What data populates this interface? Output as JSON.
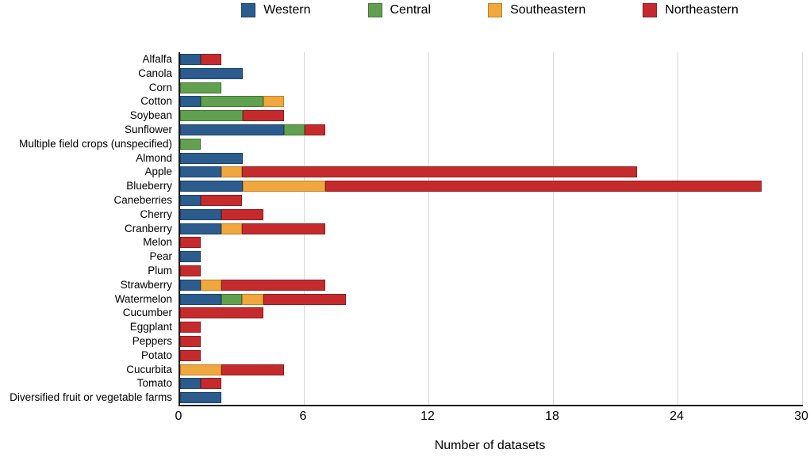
{
  "x_axis": {
    "title": "Number of datasets",
    "tick_labels": [
      "0",
      "6",
      "12",
      "18",
      "24",
      "30"
    ]
  },
  "chart_data": {
    "type": "bar",
    "orientation": "horizontal",
    "stacked": true,
    "title": "",
    "xlabel": "Number of datasets",
    "ylabel": "",
    "xlim": [
      0,
      30
    ],
    "x_ticks": [
      0,
      6,
      12,
      18,
      24,
      30
    ],
    "grid": true,
    "gridline_color": "#d9d9d9",
    "axis_color": "#1a1a1a",
    "legend_position": "top",
    "categories": [
      "Alfalfa",
      "Canola",
      "Corn",
      "Cotton",
      "Soybean",
      "Sunflower",
      "Multiple field crops (unspecified)",
      "Almond",
      "Apple",
      "Blueberry",
      "Caneberries",
      "Cherry",
      "Cranberry",
      "Melon",
      "Pear",
      "Plum",
      "Strawberry",
      "Watermelon",
      "Cucumber",
      "Eggplant",
      "Peppers",
      "Potato",
      "Cucurbita",
      "Tomato",
      "Diversified fruit or vegetable farms"
    ],
    "series": [
      {
        "name": "Western",
        "color": "#2b5c8d",
        "border_color": "#1b4168",
        "values": [
          1,
          3,
          0,
          1,
          0,
          5,
          0,
          3,
          2,
          3,
          1,
          2,
          2,
          0,
          1,
          0,
          1,
          2,
          0,
          0,
          0,
          0,
          0,
          1,
          2
        ]
      },
      {
        "name": "Central",
        "color": "#61a04f",
        "border_color": "#417434",
        "values": [
          0,
          0,
          2,
          3,
          3,
          1,
          1,
          0,
          0,
          0,
          0,
          0,
          0,
          0,
          0,
          0,
          0,
          1,
          0,
          0,
          0,
          0,
          0,
          0,
          0
        ]
      },
      {
        "name": "Southeastern",
        "color": "#efa73e",
        "border_color": "#c17f22",
        "values": [
          0,
          0,
          0,
          1,
          0,
          0,
          0,
          0,
          1,
          4,
          0,
          0,
          1,
          0,
          0,
          0,
          1,
          1,
          0,
          0,
          0,
          0,
          2,
          0,
          0
        ]
      },
      {
        "name": "Northeastern",
        "color": "#c52b2d",
        "border_color": "#8c1d1e",
        "values": [
          1,
          0,
          0,
          0,
          2,
          1,
          0,
          0,
          19,
          21,
          2,
          2,
          4,
          1,
          0,
          1,
          5,
          4,
          4,
          1,
          1,
          1,
          3,
          1,
          0
        ]
      }
    ]
  }
}
